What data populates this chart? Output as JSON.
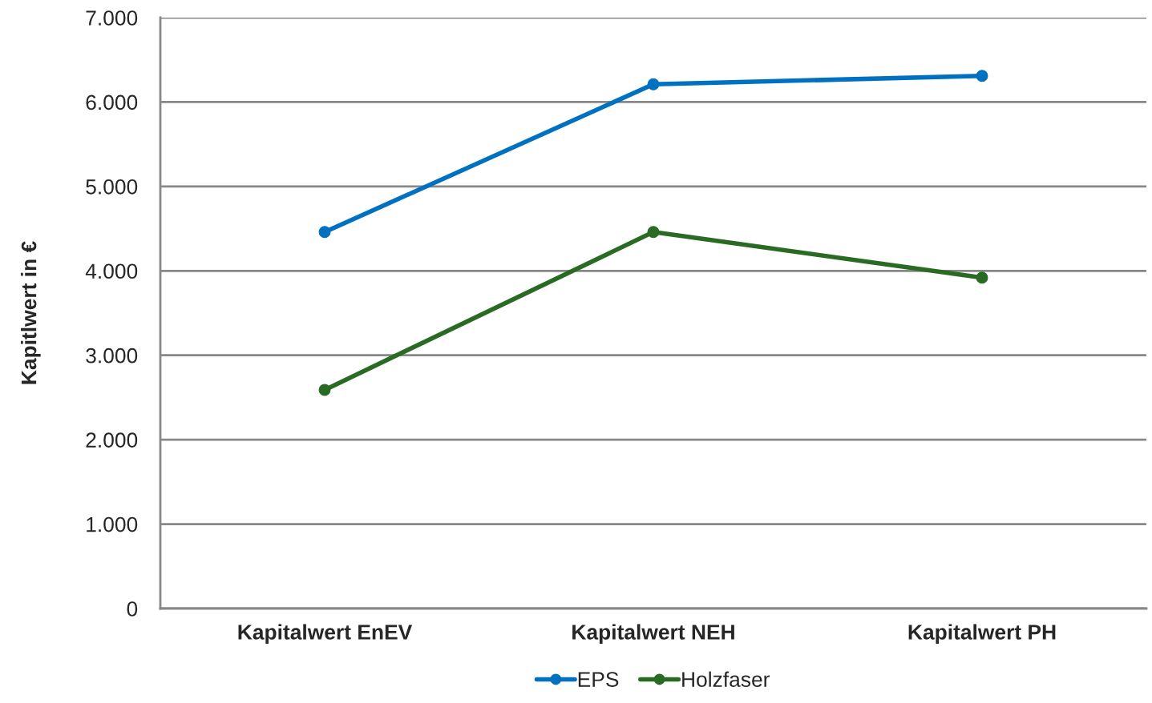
{
  "chart_data": {
    "type": "line",
    "ylabel": "Kapitlwert in €",
    "categories": [
      "Kapitalwert EnEV",
      "Kapitalwert NEH",
      "Kapitalwert PH"
    ],
    "series": [
      {
        "name": "EPS",
        "color": "#0070c0",
        "values": [
          4460,
          6210,
          6310
        ]
      },
      {
        "name": "Holzfaser",
        "color": "#2a6b24",
        "values": [
          2590,
          4460,
          3920
        ]
      }
    ],
    "ylim": [
      0,
      7000
    ],
    "yticks": [
      0,
      {
        "value": 1000,
        "label": "1.000"
      },
      {
        "value": 2000,
        "label": "2.000"
      },
      {
        "value": 3000,
        "label": "3.000"
      },
      {
        "value": 4000,
        "label": "4.000"
      },
      {
        "value": 5000,
        "label": "5.000"
      },
      {
        "value": 6000,
        "label": "6.000"
      },
      {
        "value": 7000,
        "label": "7.000"
      }
    ],
    "grid": "y",
    "legend": "bottom",
    "marker": "circle",
    "line_style": "solid"
  }
}
